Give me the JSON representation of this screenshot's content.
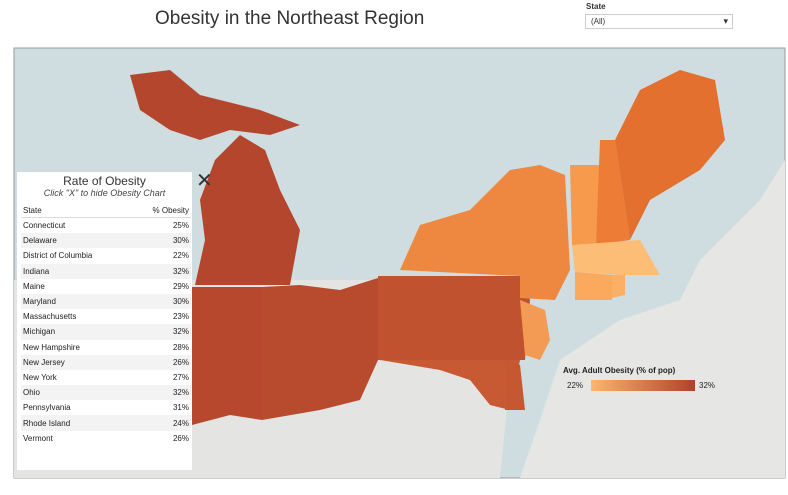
{
  "header": {
    "title": "Obesity in the Northeast Region"
  },
  "filter": {
    "label": "State",
    "value": "(All)"
  },
  "table": {
    "title": "Rate of Obesity",
    "subtitle": "Click \"X\" to hide Obesity Chart",
    "columns": [
      "State",
      "% Obesity"
    ],
    "rows": [
      [
        "Connecticut",
        "25%"
      ],
      [
        "Delaware",
        "30%"
      ],
      [
        "District of Columbia",
        "22%"
      ],
      [
        "Indiana",
        "32%"
      ],
      [
        "Maine",
        "29%"
      ],
      [
        "Maryland",
        "30%"
      ],
      [
        "Massachusetts",
        "23%"
      ],
      [
        "Michigan",
        "32%"
      ],
      [
        "New Hampshire",
        "28%"
      ],
      [
        "New Jersey",
        "26%"
      ],
      [
        "New York",
        "27%"
      ],
      [
        "Ohio",
        "32%"
      ],
      [
        "Pennsylvania",
        "31%"
      ],
      [
        "Rhode Island",
        "24%"
      ],
      [
        "Vermont",
        "26%"
      ]
    ]
  },
  "legend": {
    "title": "Avg. Adult Obesity (% of pop)",
    "min_label": "22%",
    "max_label": "32%"
  }
}
